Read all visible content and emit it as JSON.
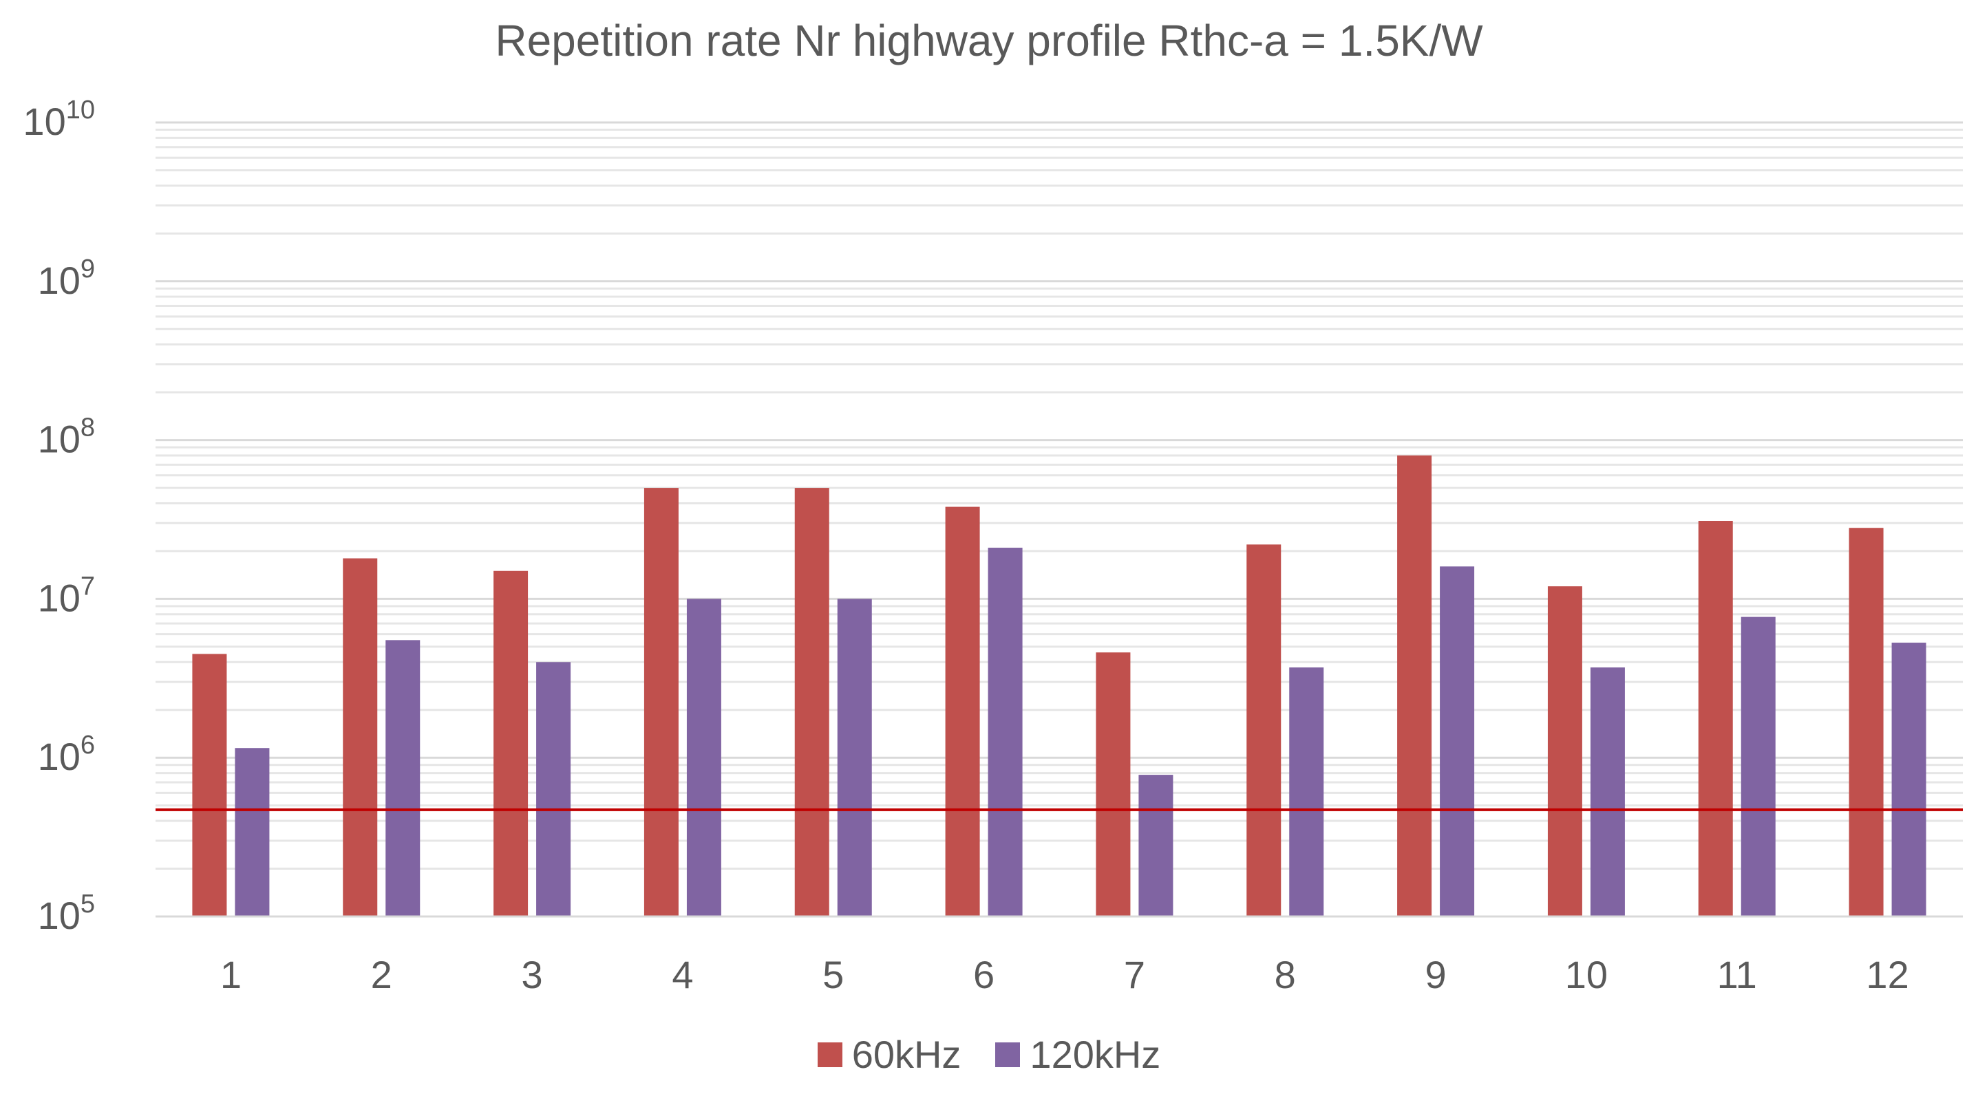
{
  "colors": {
    "series_60": "#C0504D",
    "series_120": "#8064A2",
    "threshold": "#C00000",
    "grid_major": "#D9D9D9",
    "grid_minor": "#E6E6E6",
    "axis_text": "#595959"
  },
  "chart_data": {
    "type": "bar",
    "title": "Repetition rate Nr highway profile Rthc-a = 1.5K/W",
    "xlabel": "",
    "ylabel": "",
    "yscale": "log",
    "ylim": [
      100000,
      10000000000
    ],
    "y_ticks": [
      {
        "value": 100000,
        "base": "10",
        "exp": "5"
      },
      {
        "value": 1000000,
        "base": "10",
        "exp": "6"
      },
      {
        "value": 10000000,
        "base": "10",
        "exp": "7"
      },
      {
        "value": 100000000,
        "base": "10",
        "exp": "8"
      },
      {
        "value": 1000000000,
        "base": "10",
        "exp": "9"
      },
      {
        "value": 10000000000,
        "base": "10",
        "exp": "10"
      }
    ],
    "grid": true,
    "legend_position": "bottom",
    "categories": [
      "1",
      "2",
      "3",
      "4",
      "5",
      "6",
      "7",
      "8",
      "9",
      "10",
      "11",
      "12"
    ],
    "series": [
      {
        "name": "60kHz",
        "values": [
          4500000,
          18000000,
          15000000,
          50000000,
          50000000,
          38000000,
          4600000,
          22000000,
          80000000,
          12000000,
          31000000,
          28000000
        ]
      },
      {
        "name": "120kHz",
        "values": [
          1150000,
          5500000,
          4000000,
          10000000,
          10000000,
          21000000,
          780000,
          3700000,
          16000000,
          3700000,
          7700000,
          5300000
        ]
      }
    ],
    "reference_line": {
      "value": 470000
    }
  }
}
